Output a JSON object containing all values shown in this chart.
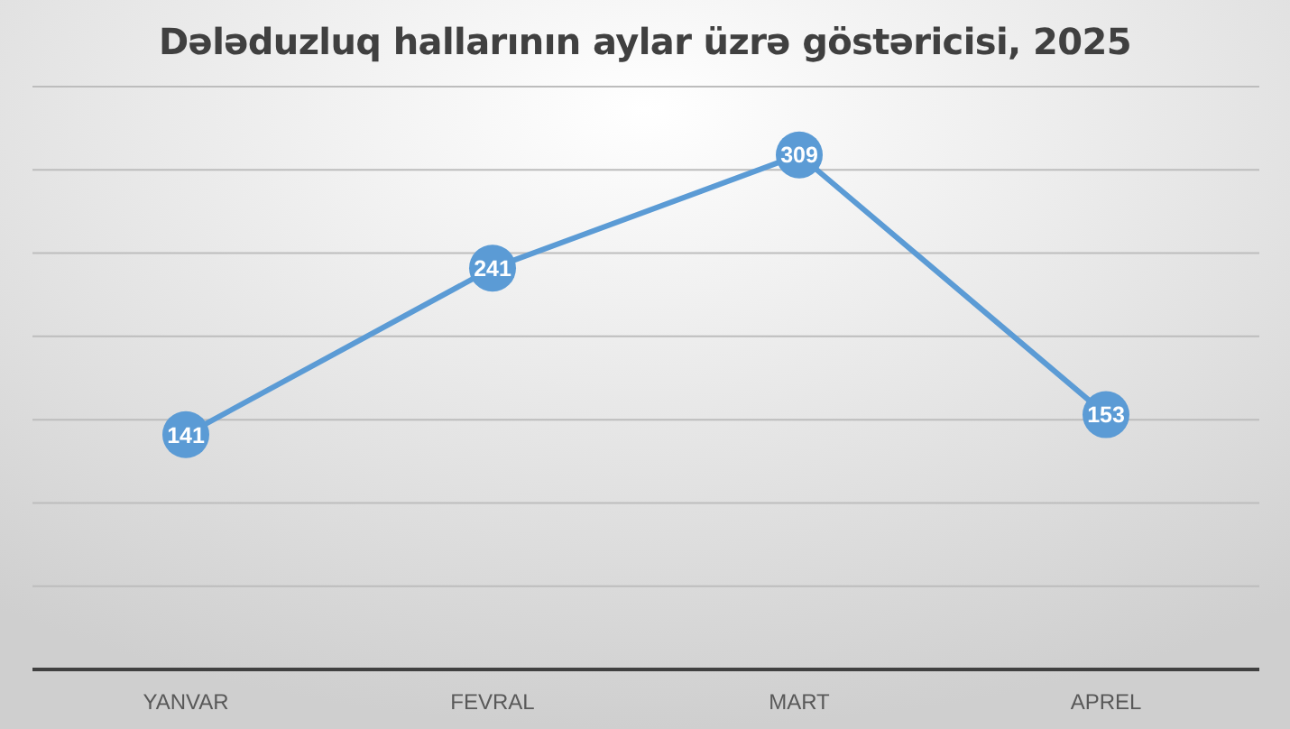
{
  "chart_data": {
    "type": "line",
    "title": "Dələduzluq hallarının aylar üzrə göstəricisi, 2025",
    "categories": [
      "YANVAR",
      "FEVRAL",
      "MART",
      "APREL"
    ],
    "values": [
      141,
      241,
      309,
      153
    ],
    "color": "#5b9bd5",
    "ylim": [
      0,
      350
    ],
    "yticks": [
      {
        "value": 0,
        "label": null
      },
      {
        "value": 50,
        "label": null
      },
      {
        "value": 100,
        "label": null
      },
      {
        "value": 150,
        "label": null
      },
      {
        "value": 200,
        "label": null
      },
      {
        "value": 250,
        "label": null
      },
      {
        "value": 300,
        "label": null
      },
      {
        "value": 350,
        "label": null
      }
    ],
    "grid": "y",
    "tick_labels": "x",
    "marker": "circle",
    "line_style": "solid",
    "data_labels": true
  }
}
